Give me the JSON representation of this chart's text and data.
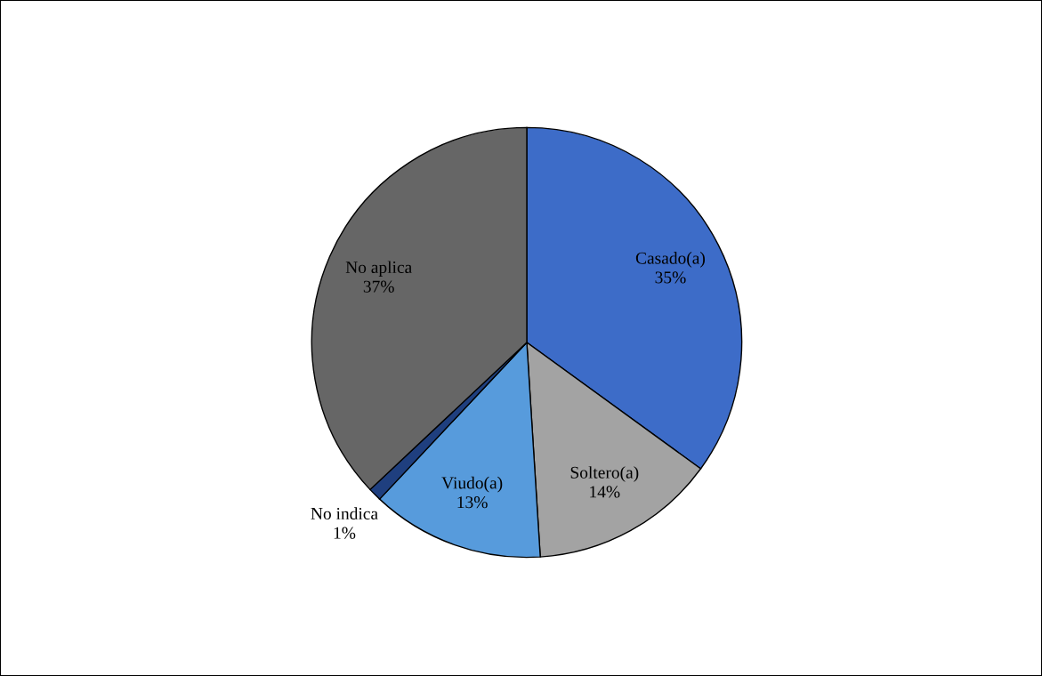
{
  "chart_data": {
    "type": "pie",
    "categories": [
      "Casado(a)",
      "Soltero(a)",
      "Viudo(a)",
      "No indica",
      "No aplica"
    ],
    "values": [
      35,
      14,
      13,
      1,
      37
    ],
    "value_labels": [
      "35%",
      "14%",
      "13%",
      "1%",
      "37%"
    ],
    "colors": [
      "#3d6cc8",
      "#a3a3a3",
      "#579bdc",
      "#1f3f7f",
      "#666666"
    ],
    "legend": false
  }
}
